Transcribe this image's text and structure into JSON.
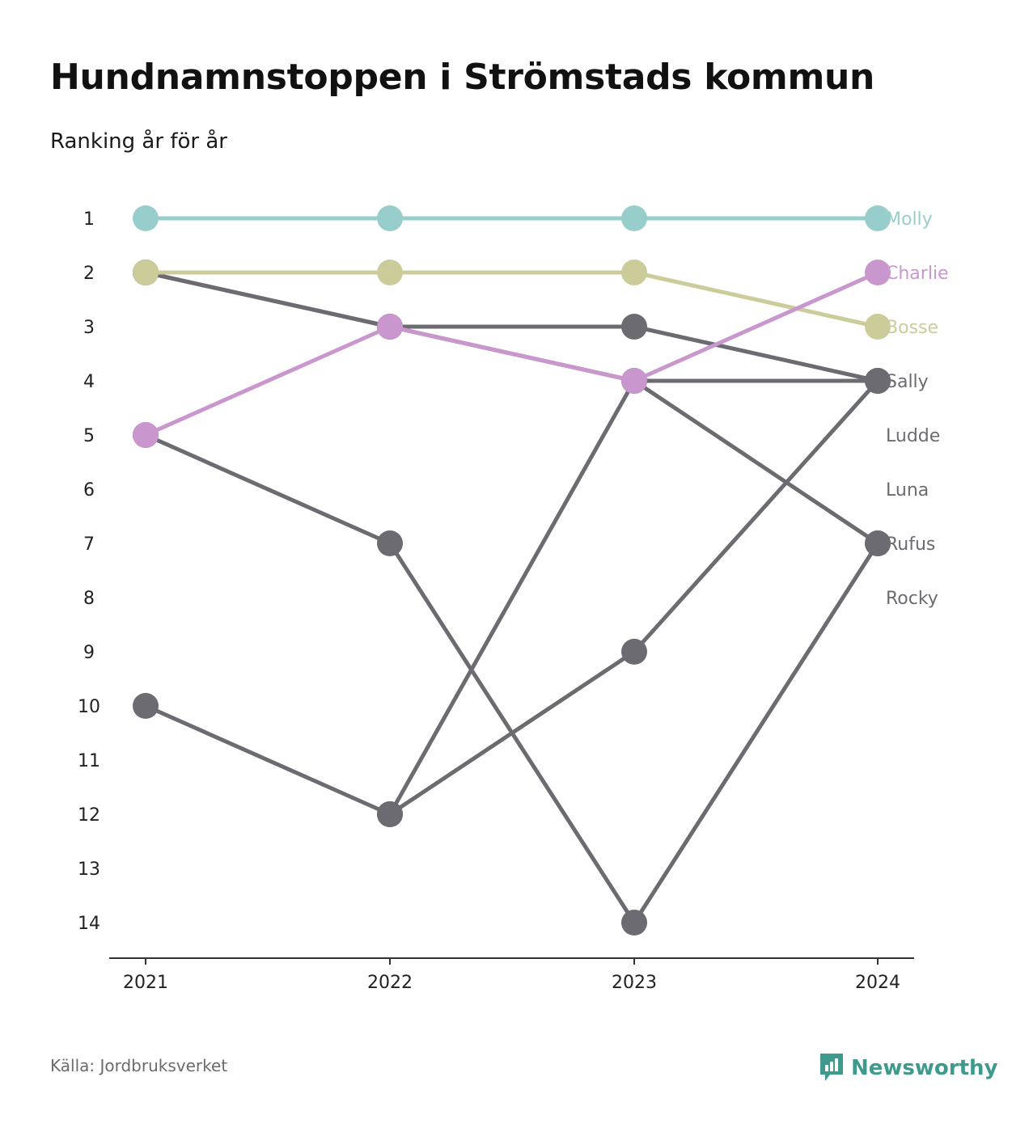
{
  "title": "Hundnamnstoppen i Strömstads kommun",
  "subtitle": "Ranking år för år",
  "source": "Källa: Jordbruksverket",
  "brand": {
    "name": "Newsworthy",
    "icon": "newsworthy-logo-icon",
    "color": "#3f9a8e"
  },
  "chart_data": {
    "type": "line",
    "x": [
      "2021",
      "2022",
      "2023",
      "2024"
    ],
    "y_ticks": [
      1,
      2,
      3,
      4,
      5,
      6,
      7,
      8,
      9,
      10,
      11,
      12,
      13,
      14
    ],
    "ylim": [
      1,
      14
    ],
    "y_reversed": true,
    "grid": false,
    "legend": "right-end labels",
    "series": [
      {
        "name": "Rocky",
        "color": "#6c6b72",
        "values": [
          5,
          7,
          14,
          7
        ]
      },
      {
        "name": "Rufus",
        "color": "#6c6b72",
        "values": [
          2,
          3,
          4,
          7
        ]
      },
      {
        "name": "Luna",
        "color": "#6c6b72",
        "values": [
          10,
          12,
          9,
          4
        ]
      },
      {
        "name": "Ludde",
        "color": "#6c6b72",
        "values": [
          null,
          12,
          4,
          4
        ]
      },
      {
        "name": "Sally",
        "color": "#6c6b72",
        "values": [
          2,
          3,
          3,
          4
        ]
      },
      {
        "name": "Bosse",
        "color": "#cccc9a",
        "values": [
          2,
          2,
          2,
          3
        ]
      },
      {
        "name": "Charlie",
        "color": "#c997cd",
        "values": [
          5,
          3,
          4,
          2
        ]
      },
      {
        "name": "Molly",
        "color": "#97cecc",
        "values": [
          1,
          1,
          1,
          1
        ]
      }
    ]
  }
}
